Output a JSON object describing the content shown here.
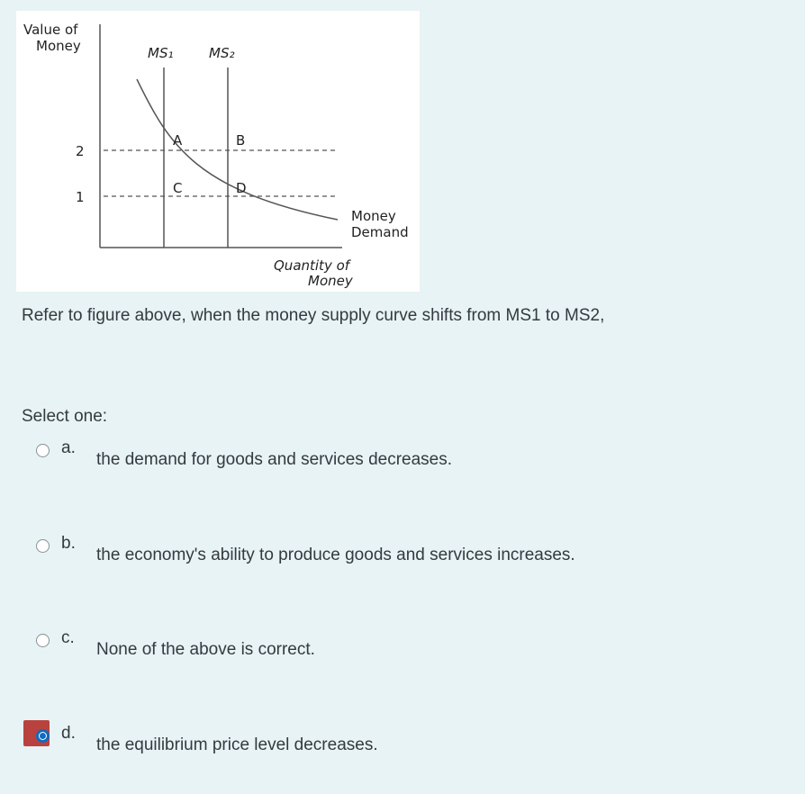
{
  "figure": {
    "y_axis_label": [
      "Value of",
      "Money"
    ],
    "supply_labels": [
      "MS₁",
      "MS₂"
    ],
    "level_labels": [
      "2",
      "1"
    ],
    "points": [
      "A",
      "B",
      "C",
      "D"
    ],
    "demand_label": [
      "Money",
      "Demand"
    ],
    "x_axis_label": [
      "Quantity of",
      "Money"
    ]
  },
  "question": "Refer to figure above, when the money supply curve shifts from MS1 to MS2,",
  "prompt": "Select one:",
  "options": [
    {
      "letter": "a.",
      "text": "the demand for goods and services decreases."
    },
    {
      "letter": "b.",
      "text": "the economy's ability to produce goods and services increases."
    },
    {
      "letter": "c.",
      "text": "None of the above is correct."
    },
    {
      "letter": "d.",
      "text": "the equilibrium price level decreases."
    }
  ],
  "selected": 3
}
